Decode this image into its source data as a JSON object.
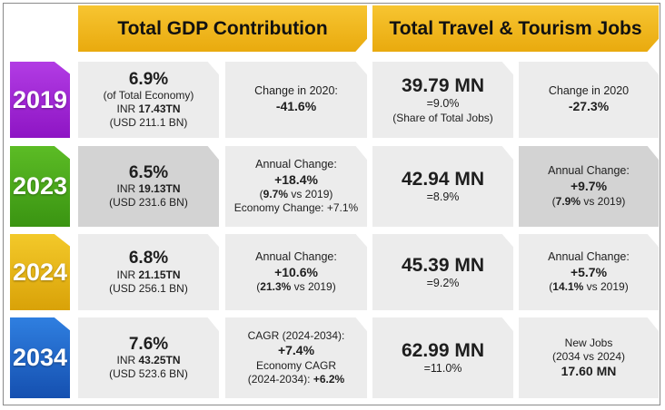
{
  "headers": {
    "gdp": "Total GDP Contribution",
    "jobs": "Total Travel & Tourism Jobs"
  },
  "colors": {
    "header": "#f0b51f",
    "y2019": "#9b1fd1",
    "y2023": "#45a41a",
    "y2024": "#e3b30f",
    "y2034": "#1d63c4"
  },
  "rows": [
    {
      "year": "2019",
      "gdp_main": {
        "value": "6.9%",
        "note": "(of Total Economy)",
        "inr_prefix": "INR ",
        "inr_value": "17.43TN",
        "usd": "(USD 211.1 BN)"
      },
      "gdp_change": {
        "label": "Change in 2020:",
        "value": "-41.6%"
      },
      "jobs_main": {
        "value": "39.79 MN",
        "share": "=9.0%",
        "note": "(Share of Total Jobs)"
      },
      "jobs_change": {
        "label": "Change in 2020",
        "value": "-27.3%"
      }
    },
    {
      "year": "2023",
      "gdp_main": {
        "value": "6.5%",
        "inr_prefix": "INR ",
        "inr_value": "19.13TN",
        "usd": "(USD 231.6 BN)"
      },
      "gdp_change": {
        "label": "Annual Change:",
        "value": "+18.4%",
        "vs_value": "9.7%",
        "vs_text": " vs 2019)",
        "econ": "Economy Change: +7.1%"
      },
      "jobs_main": {
        "value": "42.94 MN",
        "share": "=8.9%"
      },
      "jobs_change": {
        "label": "Annual Change:",
        "value": "+9.7%",
        "vs_value": "7.9%",
        "vs_text": " vs 2019)"
      }
    },
    {
      "year": "2024",
      "gdp_main": {
        "value": "6.8%",
        "inr_prefix": "INR ",
        "inr_value": "21.15TN",
        "usd": "(USD 256.1 BN)"
      },
      "gdp_change": {
        "label": "Annual Change:",
        "value": "+10.6%",
        "vs_value": "21.3%",
        "vs_text": " vs 2019)"
      },
      "jobs_main": {
        "value": "45.39 MN",
        "share": "=9.2%"
      },
      "jobs_change": {
        "label": "Annual Change:",
        "value": "+5.7%",
        "vs_value": "14.1%",
        "vs_text": " vs 2019)"
      }
    },
    {
      "year": "2034",
      "gdp_main": {
        "value": "7.6%",
        "inr_prefix": "INR ",
        "inr_value": "43.25TN",
        "usd": "(USD 523.6 BN)"
      },
      "gdp_change": {
        "label": "CAGR (2024-2034):",
        "value": "+7.4%",
        "econ_label": "Economy CAGR",
        "econ_period": "(2024-2034): ",
        "econ_value": "+6.2%"
      },
      "jobs_main": {
        "value": "62.99 MN",
        "share": "=11.0%"
      },
      "jobs_change": {
        "label": "New Jobs",
        "period": "(2034 vs 2024)",
        "value": "17.60 MN"
      }
    }
  ]
}
